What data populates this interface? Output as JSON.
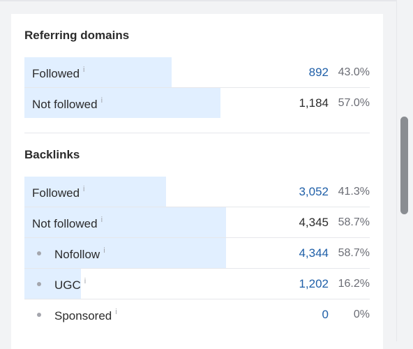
{
  "referring_domains": {
    "title": "Referring domains",
    "rows": [
      {
        "label": "Followed",
        "value": "892",
        "percent": "43.0%",
        "share": 0.43
      },
      {
        "label": "Not followed",
        "value": "1,184",
        "percent": "57.0%",
        "share": 0.57
      }
    ]
  },
  "backlinks": {
    "title": "Backlinks",
    "rows": [
      {
        "label": "Followed",
        "value": "3,052",
        "percent": "41.3%",
        "share": 0.413
      },
      {
        "label": "Not followed",
        "value": "4,345",
        "percent": "58.7%",
        "share": 0.587
      },
      {
        "label": "Nofollow",
        "value": "4,344",
        "percent": "58.7%",
        "share": 0.587
      },
      {
        "label": "UGC",
        "value": "1,202",
        "percent": "16.2%",
        "share": 0.162
      },
      {
        "label": "Sponsored",
        "value": "0",
        "percent": "0%",
        "share": 0
      }
    ]
  },
  "info_icon_glyph": "i",
  "colors": {
    "bar": "#e1efff",
    "link": "#1f5fa8",
    "text": "#2b2b2b",
    "muted": "#6b6d75"
  }
}
